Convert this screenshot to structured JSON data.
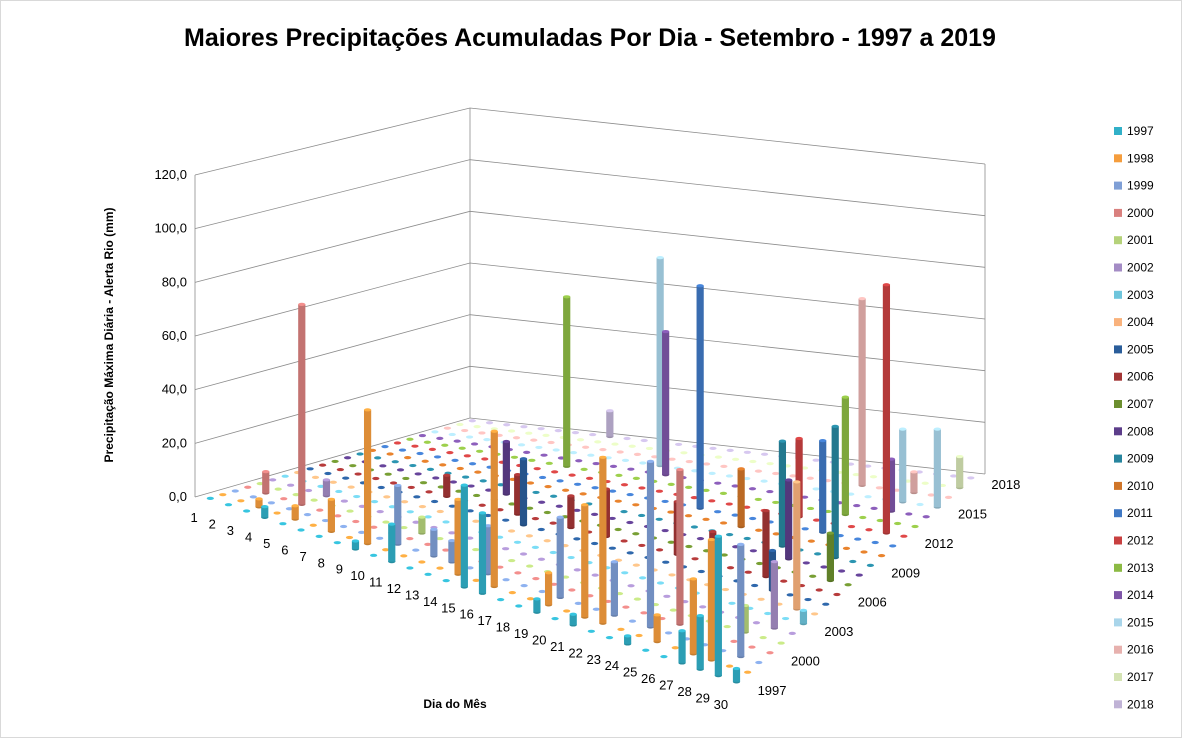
{
  "chart_data": {
    "type": "bar3d",
    "title": "Maiores Precipitações Acumuladas Por Dia - Setembro - 1997 a 2019",
    "y_label": "Precipitação Máxima Diária - Alerta Rio (mm)",
    "x_label": "Dia do Mês",
    "categories": [
      "1",
      "2",
      "3",
      "4",
      "5",
      "6",
      "7",
      "8",
      "9",
      "10",
      "11",
      "12",
      "13",
      "14",
      "15",
      "16",
      "17",
      "18",
      "19",
      "20",
      "21",
      "22",
      "23",
      "24",
      "25",
      "26",
      "27",
      "28",
      "29",
      "30"
    ],
    "ylim": [
      0,
      120
    ],
    "yticks": [
      {
        "value": 0,
        "label": "0,0"
      },
      {
        "value": 20,
        "label": "20,0"
      },
      {
        "value": 40,
        "label": "40,0"
      },
      {
        "value": 60,
        "label": "60,0"
      },
      {
        "value": 80,
        "label": "80,0"
      },
      {
        "value": 100,
        "label": "100,0"
      },
      {
        "value": 120,
        "label": "120,0"
      }
    ],
    "grid": true,
    "legend": "right",
    "series": [
      {
        "name": "1997",
        "color": "#31b0c8",
        "values": [
          0,
          0,
          0,
          4,
          0,
          0,
          0,
          0,
          3,
          0,
          14,
          0,
          0,
          0,
          38,
          30,
          0,
          0,
          5,
          0,
          4,
          0,
          0,
          3,
          0,
          0,
          12,
          20,
          52,
          5
        ]
      },
      {
        "name": "1998",
        "color": "#f59d3d",
        "values": [
          0,
          0,
          3,
          0,
          5,
          0,
          12,
          0,
          50,
          0,
          0,
          0,
          0,
          28,
          0,
          58,
          0,
          0,
          12,
          0,
          42,
          62,
          0,
          0,
          10,
          0,
          28,
          45,
          0,
          0
        ]
      },
      {
        "name": "1999",
        "color": "#7f9fd6",
        "values": [
          0,
          0,
          0,
          0,
          0,
          0,
          0,
          0,
          0,
          22,
          0,
          10,
          8,
          0,
          18,
          0,
          0,
          0,
          30,
          0,
          0,
          20,
          0,
          62,
          0,
          0,
          0,
          0,
          42,
          0
        ]
      },
      {
        "name": "2000",
        "color": "#d9807e",
        "values": [
          0,
          8,
          0,
          75,
          0,
          0,
          0,
          0,
          0,
          0,
          0,
          0,
          0,
          0,
          0,
          0,
          0,
          0,
          0,
          0,
          0,
          0,
          0,
          0,
          58,
          0,
          0,
          0,
          0,
          0
        ]
      },
      {
        "name": "2001",
        "color": "#b5d27a",
        "values": [
          0,
          0,
          0,
          0,
          0,
          0,
          0,
          0,
          0,
          6,
          0,
          0,
          0,
          8,
          0,
          0,
          0,
          0,
          0,
          0,
          0,
          0,
          0,
          0,
          0,
          0,
          0,
          10,
          0,
          0
        ]
      },
      {
        "name": "2002",
        "color": "#a48cc5",
        "values": [
          0,
          0,
          0,
          6,
          0,
          0,
          0,
          0,
          0,
          0,
          0,
          0,
          0,
          0,
          0,
          0,
          0,
          0,
          0,
          0,
          0,
          0,
          0,
          0,
          0,
          0,
          0,
          0,
          25,
          0
        ]
      },
      {
        "name": "2003",
        "color": "#6ec5dc",
        "values": [
          0,
          0,
          0,
          0,
          0,
          0,
          0,
          0,
          0,
          0,
          0,
          0,
          0,
          0,
          0,
          0,
          0,
          0,
          0,
          0,
          0,
          0,
          0,
          0,
          0,
          0,
          0,
          0,
          0,
          5
        ]
      },
      {
        "name": "2004",
        "color": "#f9b27c",
        "values": [
          0,
          0,
          0,
          0,
          0,
          0,
          0,
          0,
          0,
          0,
          0,
          0,
          0,
          0,
          0,
          0,
          0,
          0,
          0,
          0,
          0,
          0,
          0,
          0,
          0,
          0,
          0,
          0,
          48,
          0
        ]
      },
      {
        "name": "2005",
        "color": "#2a5d9a",
        "values": [
          0,
          0,
          0,
          0,
          0,
          0,
          0,
          0,
          0,
          0,
          0,
          0,
          25,
          0,
          0,
          0,
          0,
          0,
          0,
          0,
          0,
          0,
          0,
          0,
          0,
          0,
          15,
          0,
          0,
          0
        ]
      },
      {
        "name": "2006",
        "color": "#a33535",
        "values": [
          0,
          0,
          0,
          0,
          0,
          0,
          0,
          8,
          0,
          0,
          0,
          15,
          0,
          0,
          12,
          0,
          18,
          0,
          0,
          0,
          20,
          0,
          12,
          0,
          0,
          25,
          0,
          0,
          0,
          0
        ]
      },
      {
        "name": "2007",
        "color": "#6b8e2e",
        "values": [
          0,
          0,
          0,
          0,
          0,
          0,
          0,
          0,
          0,
          0,
          0,
          0,
          0,
          0,
          0,
          0,
          0,
          0,
          0,
          0,
          0,
          0,
          0,
          0,
          0,
          0,
          0,
          0,
          18,
          0
        ]
      },
      {
        "name": "2008",
        "color": "#5c3d8a",
        "values": [
          0,
          0,
          0,
          0,
          0,
          0,
          0,
          0,
          0,
          20,
          0,
          0,
          0,
          0,
          0,
          0,
          0,
          0,
          0,
          0,
          0,
          0,
          0,
          0,
          0,
          30,
          0,
          0,
          0,
          0
        ]
      },
      {
        "name": "2009",
        "color": "#27859e",
        "values": [
          0,
          0,
          0,
          0,
          0,
          0,
          0,
          0,
          0,
          0,
          0,
          0,
          0,
          0,
          0,
          0,
          0,
          0,
          0,
          0,
          0,
          0,
          0,
          0,
          40,
          0,
          0,
          50,
          0,
          0
        ]
      },
      {
        "name": "2010",
        "color": "#d07528",
        "values": [
          0,
          0,
          0,
          0,
          0,
          0,
          0,
          0,
          0,
          0,
          0,
          0,
          0,
          0,
          0,
          0,
          0,
          0,
          0,
          0,
          0,
          22,
          0,
          0,
          0,
          0,
          0,
          0,
          0,
          0
        ]
      },
      {
        "name": "2011",
        "color": "#3f78c4",
        "values": [
          0,
          0,
          0,
          0,
          0,
          0,
          0,
          0,
          0,
          0,
          0,
          0,
          0,
          0,
          0,
          0,
          0,
          0,
          85,
          0,
          0,
          0,
          0,
          0,
          0,
          35,
          0,
          0,
          0,
          0
        ]
      },
      {
        "name": "2012",
        "color": "#c84040",
        "values": [
          0,
          0,
          0,
          0,
          0,
          0,
          0,
          0,
          0,
          0,
          0,
          0,
          0,
          0,
          0,
          0,
          0,
          0,
          0,
          0,
          0,
          0,
          0,
          30,
          0,
          0,
          0,
          0,
          95,
          0
        ]
      },
      {
        "name": "2013",
        "color": "#8cba44",
        "values": [
          0,
          0,
          0,
          0,
          0,
          0,
          0,
          0,
          0,
          65,
          0,
          0,
          0,
          0,
          0,
          0,
          0,
          0,
          0,
          0,
          0,
          0,
          0,
          0,
          0,
          45,
          0,
          0,
          0,
          0
        ]
      },
      {
        "name": "2014",
        "color": "#7e55a8",
        "values": [
          0,
          0,
          0,
          0,
          0,
          0,
          0,
          0,
          0,
          0,
          0,
          0,
          0,
          0,
          55,
          0,
          0,
          0,
          0,
          0,
          0,
          0,
          0,
          0,
          0,
          0,
          0,
          20,
          0,
          0
        ]
      },
      {
        "name": "2015",
        "color": "#a9d5ea",
        "values": [
          0,
          0,
          0,
          0,
          0,
          0,
          0,
          0,
          0,
          0,
          0,
          0,
          0,
          80,
          0,
          0,
          0,
          0,
          0,
          0,
          0,
          0,
          0,
          0,
          0,
          0,
          0,
          28,
          0,
          30
        ]
      },
      {
        "name": "2016",
        "color": "#e7b1ae",
        "values": [
          0,
          0,
          0,
          0,
          0,
          0,
          0,
          0,
          0,
          0,
          0,
          0,
          0,
          0,
          0,
          0,
          0,
          0,
          0,
          0,
          0,
          0,
          0,
          0,
          72,
          0,
          0,
          8,
          0,
          0
        ]
      },
      {
        "name": "2017",
        "color": "#d4e3b3",
        "values": [
          0,
          0,
          0,
          0,
          0,
          0,
          0,
          0,
          0,
          0,
          0,
          0,
          0,
          0,
          0,
          0,
          0,
          0,
          0,
          0,
          0,
          0,
          0,
          0,
          0,
          0,
          0,
          0,
          0,
          12
        ]
      },
      {
        "name": "2018",
        "color": "#c0b3d6",
        "values": [
          0,
          0,
          0,
          0,
          0,
          0,
          0,
          0,
          10,
          0,
          0,
          0,
          0,
          0,
          0,
          0,
          0,
          0,
          0,
          6,
          0,
          0,
          0,
          0,
          0,
          0,
          0,
          0,
          0,
          0
        ]
      }
    ]
  }
}
